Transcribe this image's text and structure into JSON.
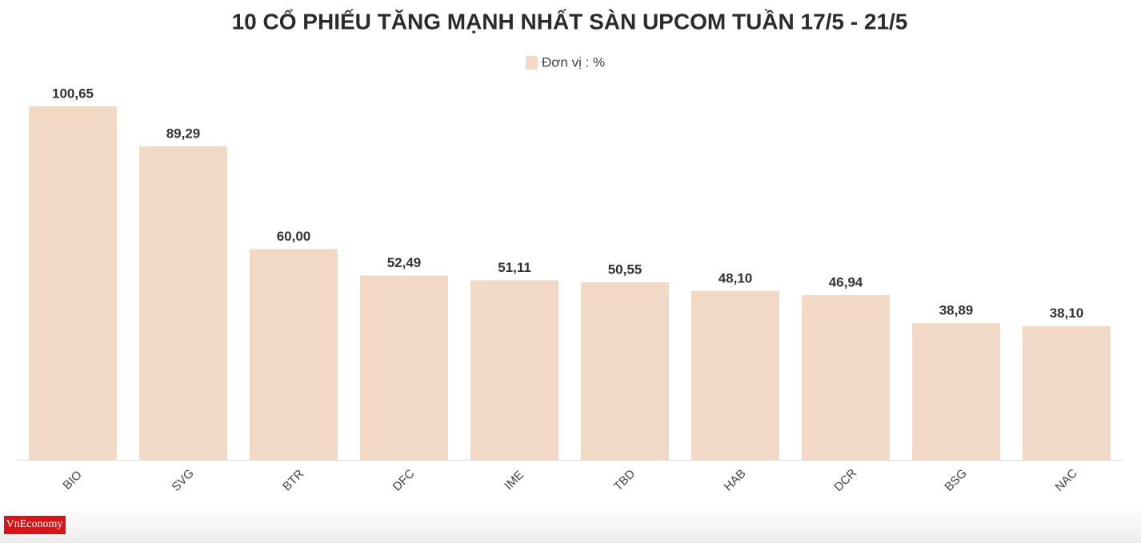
{
  "chart_data": {
    "type": "bar",
    "title": "10 CỔ PHIẾU TĂNG MẠNH NHẤT SÀN UPCOM TUẦN 17/5 - 21/5",
    "categories": [
      "BIO",
      "SVG",
      "BTR",
      "DFC",
      "IME",
      "TBD",
      "HAB",
      "DCR",
      "BSG",
      "NAC"
    ],
    "series": [
      {
        "name": "Đơn vị : %",
        "color": "#f2d9c5",
        "values": [
          100.65,
          89.29,
          60.0,
          52.49,
          51.11,
          50.55,
          48.1,
          46.94,
          38.89,
          38.1
        ],
        "value_labels": [
          "100,65",
          "89,29",
          "60,00",
          "52,49",
          "51,11",
          "50,55",
          "48,10",
          "46,94",
          "38,89",
          "38,10"
        ]
      }
    ],
    "source": "VnEconomy"
  }
}
